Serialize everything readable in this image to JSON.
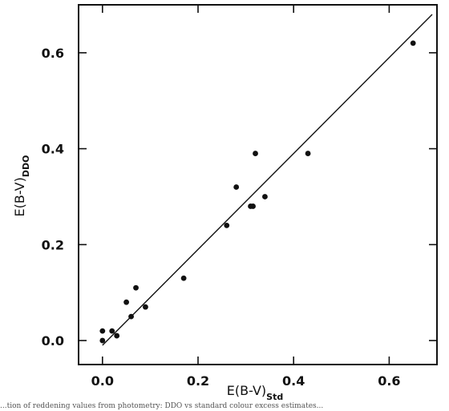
{
  "chart_data": {
    "type": "scatter",
    "xlabel": "E(B-V)",
    "xlabel_sub": "Std",
    "ylabel": "E(B-V)",
    "ylabel_sub": "DDO",
    "xlim": [
      -0.05,
      0.7
    ],
    "ylim": [
      -0.05,
      0.7
    ],
    "xticks": [
      0.0,
      0.2,
      0.4,
      0.6
    ],
    "yticks": [
      0.0,
      0.2,
      0.4,
      0.6
    ],
    "xtick_labels": [
      "0.0",
      "0.2",
      "0.4",
      "0.6"
    ],
    "ytick_labels": [
      "0.0",
      "0.2",
      "0.4",
      "0.6"
    ],
    "grid": false,
    "points": [
      {
        "x": 0.0,
        "y": 0.0
      },
      {
        "x": 0.0,
        "y": 0.02
      },
      {
        "x": 0.02,
        "y": 0.02
      },
      {
        "x": 0.03,
        "y": 0.01
      },
      {
        "x": 0.05,
        "y": 0.08
      },
      {
        "x": 0.06,
        "y": 0.05
      },
      {
        "x": 0.07,
        "y": 0.11
      },
      {
        "x": 0.09,
        "y": 0.07
      },
      {
        "x": 0.17,
        "y": 0.13
      },
      {
        "x": 0.26,
        "y": 0.24
      },
      {
        "x": 0.28,
        "y": 0.32
      },
      {
        "x": 0.31,
        "y": 0.28
      },
      {
        "x": 0.315,
        "y": 0.28
      },
      {
        "x": 0.32,
        "y": 0.39
      },
      {
        "x": 0.34,
        "y": 0.3
      },
      {
        "x": 0.43,
        "y": 0.39
      },
      {
        "x": 0.65,
        "y": 0.62
      }
    ],
    "fit_line": {
      "x": [
        0.0,
        0.69
      ],
      "y": [
        -0.01,
        0.68
      ]
    }
  },
  "caption_fragment": "...tion of reddening values from photometry: DDO vs standard colour excess estimates..."
}
